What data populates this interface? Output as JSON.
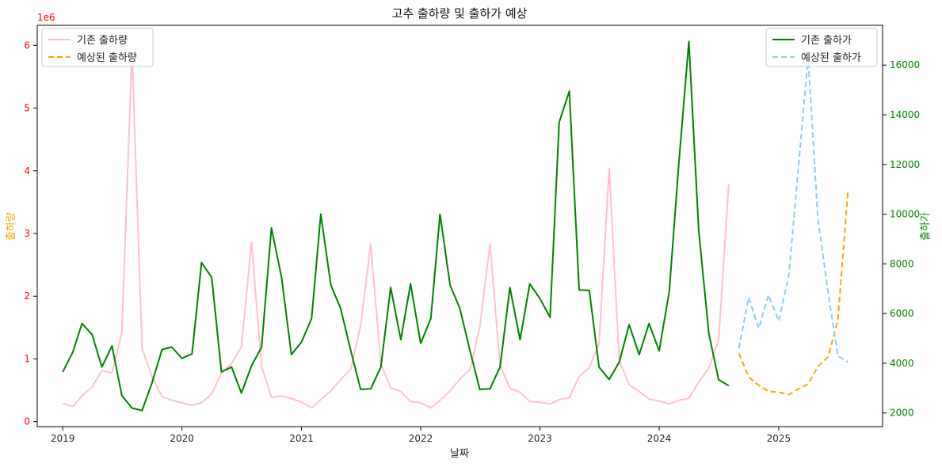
{
  "chart_data": {
    "type": "line",
    "title": "고추 출하량 및 출하가 예상",
    "xlabel": "날짜",
    "x_ticks": [
      "2019",
      "2020",
      "2021",
      "2022",
      "2023",
      "2024",
      "2025"
    ],
    "x_range": [
      "2018-10-15",
      "2025-11-15"
    ],
    "left_axis": {
      "label": "출하량",
      "label_color": "#ffa500",
      "tick_color": "#ff0000",
      "offset_text": "1e6",
      "ylim": [
        -0.08,
        6.32
      ],
      "ticks": [
        0,
        1,
        2,
        3,
        4,
        5,
        6
      ]
    },
    "right_axis": {
      "label": "출하가",
      "label_color": "#008000",
      "tick_color": "#008000",
      "ylim": [
        1450,
        17600
      ],
      "ticks": [
        2000,
        4000,
        6000,
        8000,
        10000,
        12000,
        14000,
        16000
      ]
    },
    "series": [
      {
        "name": "기존 출하량",
        "axis": "left",
        "color": "#ffc0cb",
        "dash": "",
        "x": [
          "2019-01",
          "2019-02",
          "2019-03",
          "2019-04",
          "2019-05",
          "2019-06",
          "2019-07",
          "2019-08",
          "2019-09",
          "2019-10",
          "2019-11",
          "2019-12",
          "2020-01",
          "2020-02",
          "2020-03",
          "2020-04",
          "2020-05",
          "2020-06",
          "2020-07",
          "2020-08",
          "2020-09",
          "2020-10",
          "2020-11",
          "2020-12",
          "2021-01",
          "2021-02",
          "2021-03",
          "2021-04",
          "2021-05",
          "2021-06",
          "2021-07",
          "2021-08",
          "2021-09",
          "2021-10",
          "2021-11",
          "2021-12",
          "2022-01",
          "2022-02",
          "2022-03",
          "2022-04",
          "2022-05",
          "2022-06",
          "2022-07",
          "2022-08",
          "2022-09",
          "2022-10",
          "2022-11",
          "2022-12",
          "2023-01",
          "2023-02",
          "2023-03",
          "2023-04",
          "2023-05",
          "2023-06",
          "2023-07",
          "2023-08",
          "2023-09",
          "2023-10",
          "2023-11",
          "2023-12",
          "2024-01",
          "2024-02",
          "2024-03",
          "2024-04",
          "2024-05",
          "2024-06",
          "2024-07",
          "2024-08"
        ],
        "y": [
          0.29,
          0.24,
          0.41,
          0.56,
          0.81,
          0.78,
          1.42,
          5.91,
          1.17,
          0.72,
          0.4,
          0.34,
          0.3,
          0.26,
          0.3,
          0.44,
          0.78,
          0.93,
          1.19,
          2.86,
          0.88,
          0.39,
          0.41,
          0.37,
          0.31,
          0.22,
          0.35,
          0.49,
          0.67,
          0.84,
          1.53,
          2.83,
          0.92,
          0.54,
          0.48,
          0.32,
          0.3,
          0.22,
          0.34,
          0.49,
          0.68,
          0.83,
          1.51,
          2.83,
          0.9,
          0.53,
          0.47,
          0.32,
          0.31,
          0.28,
          0.35,
          0.38,
          0.72,
          0.86,
          1.24,
          4.04,
          0.97,
          0.59,
          0.48,
          0.36,
          0.33,
          0.28,
          0.34,
          0.37,
          0.63,
          0.85,
          1.3,
          3.78
        ]
      },
      {
        "name": "예상된 출하량",
        "axis": "left",
        "color": "#ffa500",
        "dash": "7,4",
        "x": [
          "2024-09",
          "2024-10",
          "2024-11",
          "2024-12",
          "2025-01",
          "2025-02",
          "2025-03",
          "2025-04",
          "2025-05",
          "2025-06",
          "2025-07",
          "2025-08"
        ],
        "y": [
          1.09,
          0.71,
          0.58,
          0.48,
          0.47,
          0.43,
          0.52,
          0.6,
          0.88,
          1.03,
          1.61,
          3.68
        ]
      },
      {
        "name": "기존 출하가",
        "axis": "right",
        "color": "#008000",
        "dash": "",
        "x": [
          "2019-01",
          "2019-02",
          "2019-03",
          "2019-04",
          "2019-05",
          "2019-06",
          "2019-07",
          "2019-08",
          "2019-09",
          "2019-10",
          "2019-11",
          "2019-12",
          "2020-01",
          "2020-02",
          "2020-03",
          "2020-04",
          "2020-05",
          "2020-06",
          "2020-07",
          "2020-08",
          "2020-09",
          "2020-10",
          "2020-11",
          "2020-12",
          "2021-01",
          "2021-02",
          "2021-03",
          "2021-04",
          "2021-05",
          "2021-06",
          "2021-07",
          "2021-08",
          "2021-09",
          "2021-10",
          "2021-11",
          "2021-12",
          "2022-01",
          "2022-02",
          "2022-03",
          "2022-04",
          "2022-05",
          "2022-06",
          "2022-07",
          "2022-08",
          "2022-09",
          "2022-10",
          "2022-11",
          "2022-12",
          "2023-01",
          "2023-02",
          "2023-03",
          "2023-04",
          "2023-05",
          "2023-06",
          "2023-07",
          "2023-08",
          "2023-09",
          "2023-10",
          "2023-11",
          "2023-12",
          "2024-01",
          "2024-02",
          "2024-03",
          "2024-04",
          "2024-05",
          "2024-06",
          "2024-07",
          "2024-08"
        ],
        "y": [
          3650,
          4450,
          5600,
          5150,
          3850,
          4700,
          2700,
          2200,
          2100,
          3200,
          4550,
          4650,
          4200,
          4380,
          8050,
          7450,
          3650,
          3850,
          2800,
          3900,
          4650,
          9450,
          7450,
          4350,
          4850,
          5800,
          10000,
          7150,
          6200,
          4500,
          2950,
          2970,
          3850,
          7050,
          4950,
          7200,
          4800,
          5800,
          10000,
          7150,
          6200,
          4500,
          2950,
          2970,
          3850,
          7050,
          4950,
          7200,
          6600,
          5850,
          13700,
          14950,
          6950,
          6930,
          3850,
          3350,
          4050,
          5550,
          4350,
          5600,
          4500,
          6900,
          12000,
          16950,
          9350,
          5200,
          3340,
          3100
        ]
      },
      {
        "name": "예상된 출하가",
        "axis": "right",
        "color": "#87ceeb",
        "dash": "7,4",
        "x": [
          "2024-09",
          "2024-10",
          "2024-11",
          "2024-12",
          "2025-01",
          "2025-02",
          "2025-03",
          "2025-04",
          "2025-05",
          "2025-06",
          "2025-07",
          "2025-08"
        ],
        "y": [
          4600,
          6650,
          5400,
          6750,
          5700,
          7550,
          11700,
          16300,
          9800,
          6900,
          4300,
          4050
        ]
      }
    ],
    "legend_left": [
      "기존 출하량",
      "예상된 출하량"
    ],
    "legend_right": [
      "기존 출하가",
      "예상된 출하가"
    ],
    "grid": false
  }
}
